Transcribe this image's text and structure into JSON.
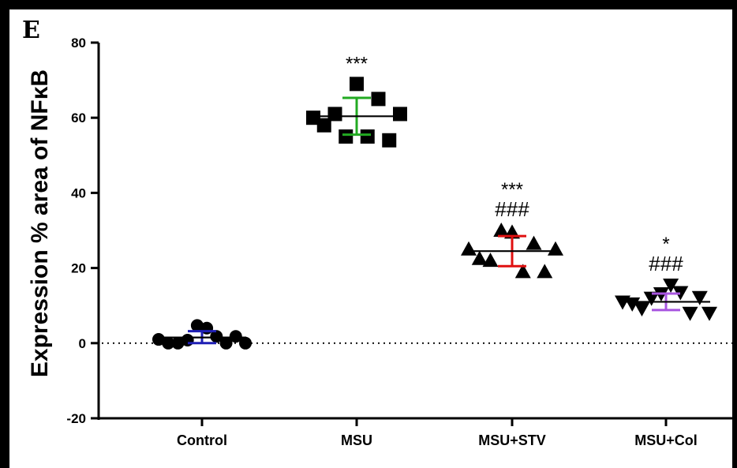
{
  "panel_label": "E",
  "chart_data": {
    "type": "scatter",
    "ylabel": "Expression % area of NFκB",
    "xlabel": "",
    "ylim": [
      -20,
      80
    ],
    "yticks": [
      -20,
      0,
      20,
      40,
      60,
      80
    ],
    "reference_line": {
      "y": 0,
      "style": "dotted"
    },
    "groups": [
      {
        "name": "Control",
        "marker": "circle",
        "error_color": "#1f1fb4",
        "mean": 1.5,
        "sd_low": 0.0,
        "sd_high": 3.2,
        "points": [
          1.0,
          0.0,
          0.0,
          0.8,
          4.7,
          4.0,
          1.8,
          0.0,
          1.8,
          0.0
        ],
        "significance": []
      },
      {
        "name": "MSU",
        "marker": "square",
        "error_color": "#22aa22",
        "mean": 60.4,
        "sd_low": 55.5,
        "sd_high": 65.3,
        "points": [
          60.0,
          58.0,
          61.0,
          55.0,
          69.0,
          55.0,
          65.0,
          54.0,
          61.0
        ],
        "significance": [
          "***"
        ]
      },
      {
        "name": "MSU+STV",
        "marker": "triangle-up",
        "error_color": "#e01010",
        "mean": 24.5,
        "sd_low": 20.5,
        "sd_high": 28.5,
        "points": [
          25.0,
          22.5,
          22.0,
          30.0,
          29.5,
          19.0,
          26.5,
          19.0,
          25.0
        ],
        "significance": [
          "***",
          "###"
        ]
      },
      {
        "name": "MSU+Col",
        "marker": "triangle-down",
        "error_color": "#a855e0",
        "mean": 11.0,
        "sd_low": 8.8,
        "sd_high": 13.2,
        "points": [
          11.0,
          10.5,
          9.2,
          12.0,
          13.2,
          15.5,
          13.5,
          8.0,
          12.2,
          8.0
        ],
        "significance": [
          "*",
          "###"
        ]
      }
    ]
  }
}
